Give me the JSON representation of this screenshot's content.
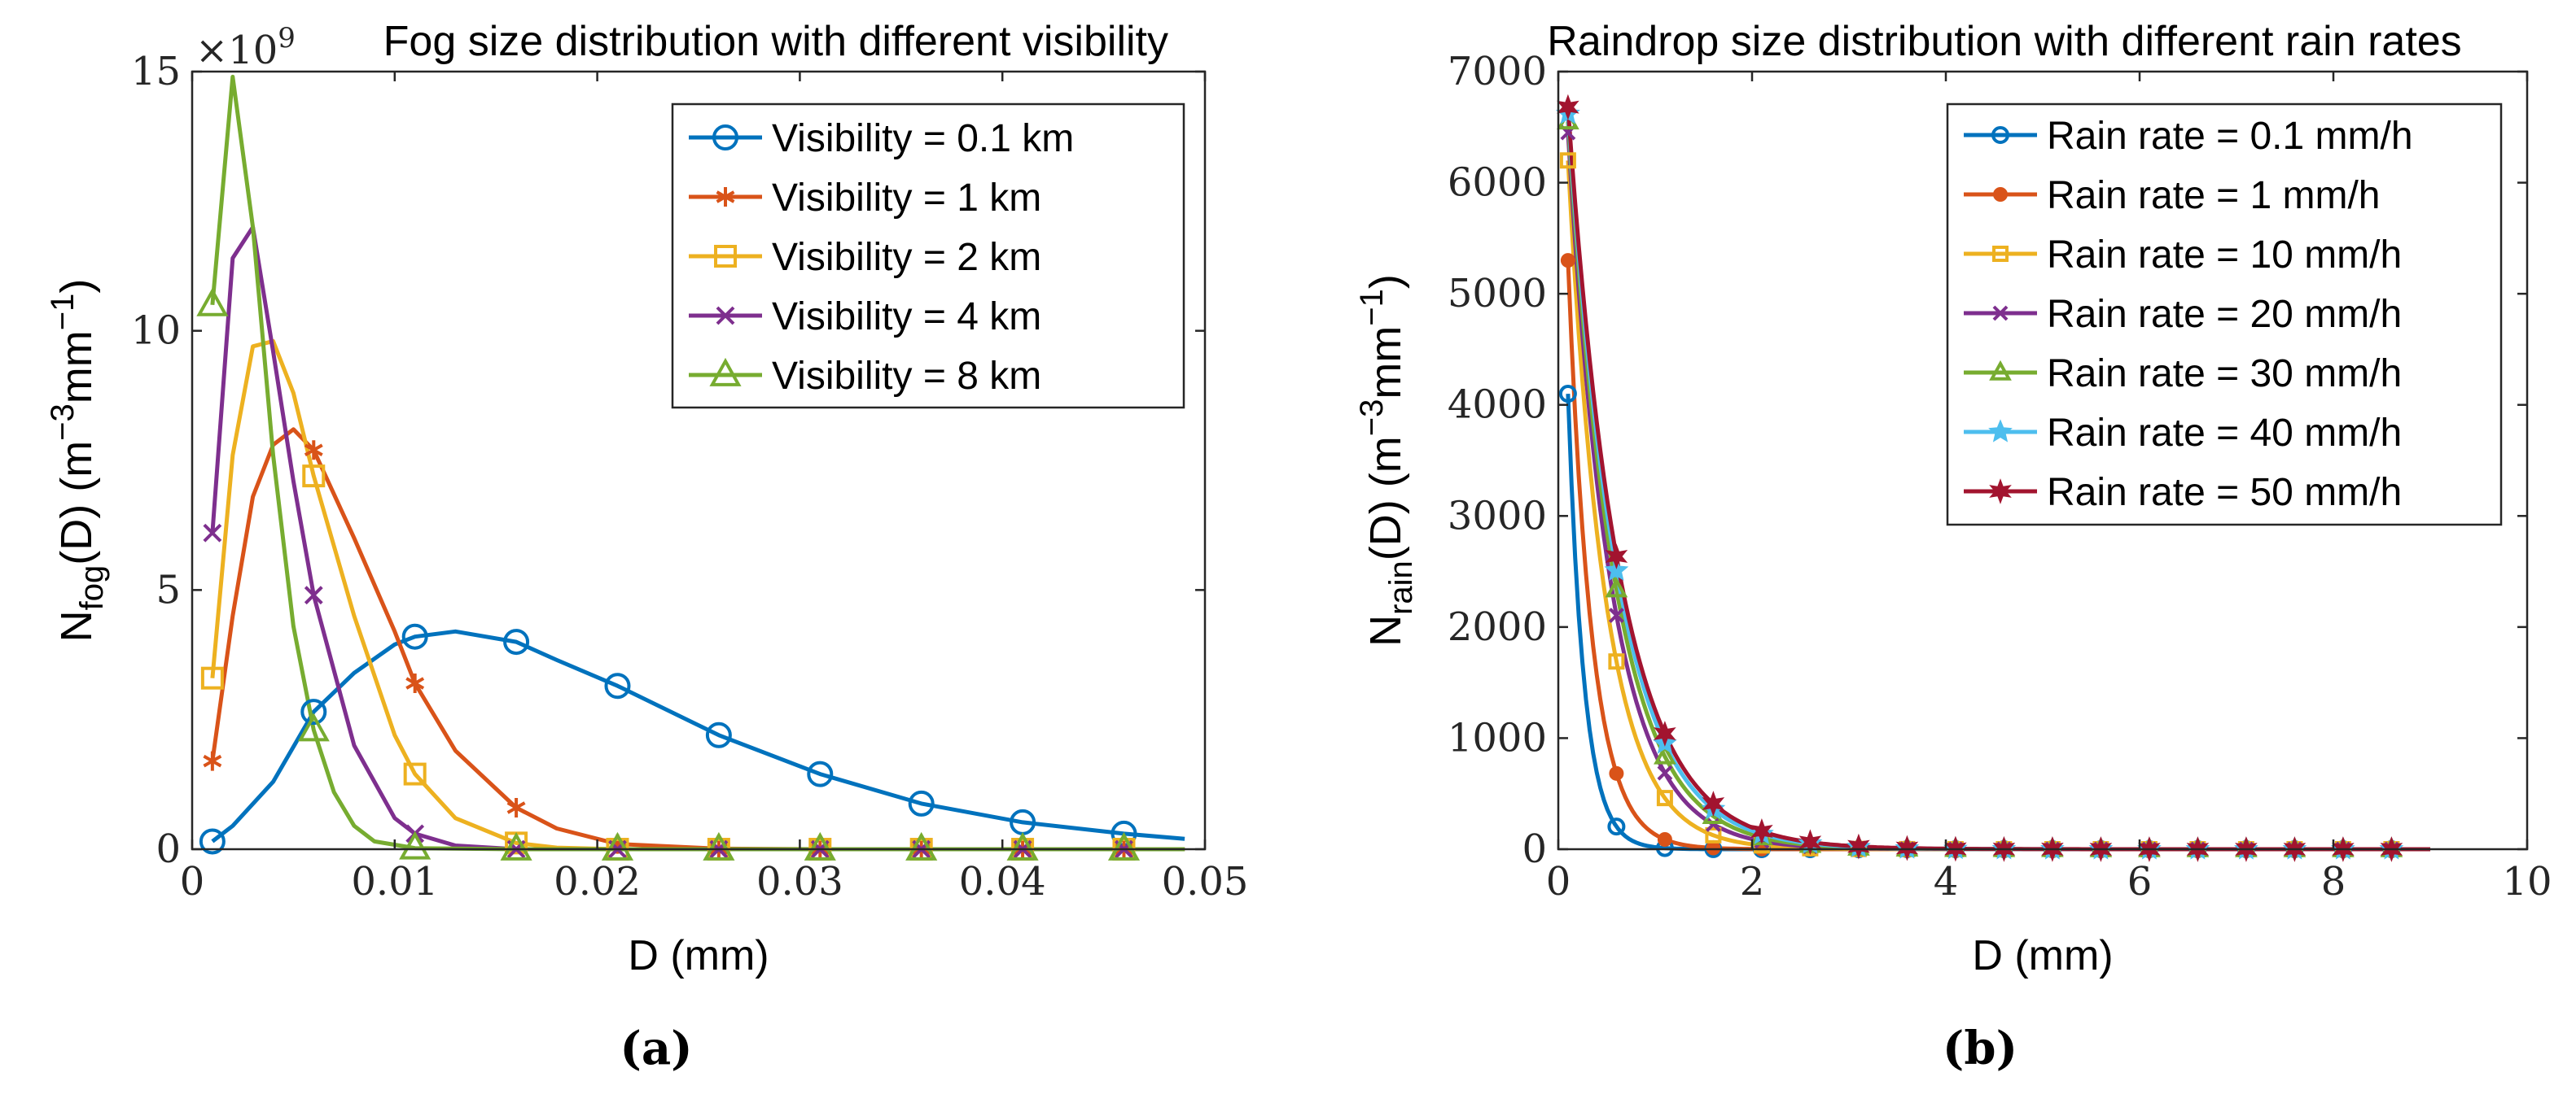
{
  "chart_data": [
    {
      "type": "line",
      "panel_label": "(a)",
      "title": "Fog size distribution with different visibility",
      "y_multiplier": "×10",
      "y_multiplier_exp": "9",
      "xlabel": "D (mm)",
      "ylabel": "N",
      "ylabel_sub": "fog",
      "ylabel_rest": "(D) (m",
      "ylabel_sup1": "−3",
      "ylabel_mid": "mm",
      "ylabel_sup2": "−1",
      "ylabel_end": ")",
      "xlim": [
        0,
        0.05
      ],
      "ylim": [
        0,
        15
      ],
      "xticks": [
        0,
        0.01,
        0.02,
        0.03,
        0.04,
        0.05
      ],
      "xtick_labels": [
        "0",
        "0.01",
        "0.02",
        "0.03",
        "0.04",
        "0.05"
      ],
      "yticks": [
        0,
        5,
        10,
        15
      ],
      "ytick_labels": [
        "0",
        "5",
        "10",
        "15"
      ],
      "legend_position": "top-right",
      "grid": false,
      "series": [
        {
          "name": "Visibility = 0.1 km",
          "color": "#0072BD",
          "marker": "circle",
          "line": [
            [
              0.001,
              0.15
            ],
            [
              0.002,
              0.45
            ],
            [
              0.004,
              1.3
            ],
            [
              0.006,
              2.65
            ],
            [
              0.008,
              3.4
            ],
            [
              0.01,
              3.95
            ],
            [
              0.011,
              4.1
            ],
            [
              0.013,
              4.2
            ],
            [
              0.016,
              4.0
            ],
            [
              0.018,
              3.65
            ],
            [
              0.021,
              3.15
            ],
            [
              0.026,
              2.2
            ],
            [
              0.031,
              1.45
            ],
            [
              0.036,
              0.88
            ],
            [
              0.041,
              0.52
            ],
            [
              0.046,
              0.3
            ],
            [
              0.049,
              0.2
            ]
          ],
          "markers": [
            [
              0.001,
              0.15
            ],
            [
              0.006,
              2.65
            ],
            [
              0.011,
              4.1
            ],
            [
              0.016,
              4.0
            ],
            [
              0.021,
              3.15
            ],
            [
              0.026,
              2.2
            ],
            [
              0.031,
              1.45
            ],
            [
              0.036,
              0.88
            ],
            [
              0.041,
              0.52
            ],
            [
              0.046,
              0.3
            ]
          ]
        },
        {
          "name": "Visibility = 1 km",
          "color": "#D95319",
          "marker": "asterisk",
          "line": [
            [
              0.001,
              1.7
            ],
            [
              0.002,
              4.5
            ],
            [
              0.003,
              6.8
            ],
            [
              0.004,
              7.8
            ],
            [
              0.005,
              8.1
            ],
            [
              0.006,
              7.7
            ],
            [
              0.008,
              6.0
            ],
            [
              0.01,
              4.2
            ],
            [
              0.011,
              3.2
            ],
            [
              0.013,
              1.9
            ],
            [
              0.016,
              0.8
            ],
            [
              0.018,
              0.4
            ],
            [
              0.021,
              0.1
            ],
            [
              0.026,
              0.01
            ],
            [
              0.031,
              0.0
            ],
            [
              0.049,
              0.0
            ]
          ],
          "markers": [
            [
              0.001,
              1.7
            ],
            [
              0.006,
              7.7
            ],
            [
              0.011,
              3.2
            ],
            [
              0.016,
              0.8
            ],
            [
              0.021,
              0.1
            ],
            [
              0.026,
              0.01
            ],
            [
              0.031,
              0.0
            ],
            [
              0.036,
              0.0
            ],
            [
              0.041,
              0.0
            ],
            [
              0.046,
              0.0
            ]
          ]
        },
        {
          "name": "Visibility = 2 km",
          "color": "#EDB120",
          "marker": "square",
          "line": [
            [
              0.001,
              3.3
            ],
            [
              0.002,
              7.6
            ],
            [
              0.003,
              9.7
            ],
            [
              0.004,
              9.8
            ],
            [
              0.005,
              8.8
            ],
            [
              0.006,
              7.2
            ],
            [
              0.008,
              4.5
            ],
            [
              0.01,
              2.2
            ],
            [
              0.011,
              1.45
            ],
            [
              0.013,
              0.6
            ],
            [
              0.016,
              0.12
            ],
            [
              0.018,
              0.03
            ],
            [
              0.021,
              0.0
            ],
            [
              0.049,
              0.0
            ]
          ],
          "markers": [
            [
              0.001,
              3.3
            ],
            [
              0.006,
              7.2
            ],
            [
              0.011,
              1.45
            ],
            [
              0.016,
              0.12
            ],
            [
              0.021,
              0.0
            ],
            [
              0.026,
              0.0
            ],
            [
              0.031,
              0.0
            ],
            [
              0.036,
              0.0
            ],
            [
              0.041,
              0.0
            ],
            [
              0.046,
              0.0
            ]
          ]
        },
        {
          "name": "Visibility = 4 km",
          "color": "#7E2F8E",
          "marker": "x",
          "line": [
            [
              0.001,
              6.1
            ],
            [
              0.002,
              11.4
            ],
            [
              0.003,
              12.0
            ],
            [
              0.004,
              9.6
            ],
            [
              0.005,
              7.1
            ],
            [
              0.006,
              4.9
            ],
            [
              0.008,
              2.0
            ],
            [
              0.01,
              0.6
            ],
            [
              0.011,
              0.3
            ],
            [
              0.013,
              0.07
            ],
            [
              0.016,
              0.0
            ],
            [
              0.049,
              0.0
            ]
          ],
          "markers": [
            [
              0.001,
              6.1
            ],
            [
              0.006,
              4.9
            ],
            [
              0.011,
              0.3
            ],
            [
              0.016,
              0.0
            ],
            [
              0.021,
              0.0
            ],
            [
              0.026,
              0.0
            ],
            [
              0.031,
              0.0
            ],
            [
              0.036,
              0.0
            ],
            [
              0.041,
              0.0
            ],
            [
              0.046,
              0.0
            ]
          ]
        },
        {
          "name": "Visibility = 8 km",
          "color": "#77AC30",
          "marker": "triangle",
          "line": [
            [
              0.001,
              10.5
            ],
            [
              0.002,
              14.9
            ],
            [
              0.003,
              12.0
            ],
            [
              0.004,
              7.6
            ],
            [
              0.005,
              4.3
            ],
            [
              0.006,
              2.3
            ],
            [
              0.007,
              1.1
            ],
            [
              0.008,
              0.45
            ],
            [
              0.009,
              0.15
            ],
            [
              0.011,
              0.02
            ],
            [
              0.016,
              0.0
            ],
            [
              0.049,
              0.0
            ]
          ],
          "markers": [
            [
              0.001,
              10.5
            ],
            [
              0.006,
              2.3
            ],
            [
              0.011,
              0.02
            ],
            [
              0.016,
              0.0
            ],
            [
              0.021,
              0.0
            ],
            [
              0.026,
              0.0
            ],
            [
              0.031,
              0.0
            ],
            [
              0.036,
              0.0
            ],
            [
              0.041,
              0.0
            ],
            [
              0.046,
              0.0
            ]
          ]
        }
      ]
    },
    {
      "type": "line",
      "panel_label": "(b)",
      "title": "Raindrop size distribution with different rain rates",
      "xlabel": "D (mm)",
      "ylabel": "N",
      "ylabel_sub": "rain",
      "ylabel_rest": "(D) (m",
      "ylabel_sup1": "−3",
      "ylabel_mid": "mm",
      "ylabel_sup2": "−1",
      "ylabel_end": ")",
      "xlim": [
        0,
        10
      ],
      "ylim": [
        0,
        7000
      ],
      "xticks": [
        0,
        2,
        4,
        6,
        8,
        10
      ],
      "xtick_labels": [
        "0",
        "2",
        "4",
        "6",
        "8",
        "10"
      ],
      "yticks": [
        0,
        1000,
        2000,
        3000,
        4000,
        5000,
        6000,
        7000
      ],
      "ytick_labels": [
        "0",
        "1000",
        "2000",
        "3000",
        "4000",
        "5000",
        "6000",
        "7000"
      ],
      "legend_position": "top-right",
      "grid": false,
      "series": [
        {
          "name": "Rain rate = 0.1 mm/h",
          "color": "#0072BD",
          "marker": "circle-small",
          "n0": 4100,
          "lambda": 6.0
        },
        {
          "name": "Rain rate = 1 mm/h",
          "color": "#D95319",
          "marker": "dot",
          "n0": 5300,
          "lambda": 4.1
        },
        {
          "name": "Rain rate = 10 mm/h",
          "color": "#EDB120",
          "marker": "square-small",
          "n0": 6200,
          "lambda": 2.6
        },
        {
          "name": "Rain rate = 20 mm/h",
          "color": "#7E2F8E",
          "marker": "x-small",
          "n0": 6450,
          "lambda": 2.24
        },
        {
          "name": "Rain rate = 30 mm/h",
          "color": "#77AC30",
          "marker": "triangle-small",
          "n0": 6550,
          "lambda": 2.06
        },
        {
          "name": "Rain rate = 40 mm/h",
          "color": "#4DBEEE",
          "marker": "star",
          "n0": 6620,
          "lambda": 1.94
        },
        {
          "name": "Rain rate = 50 mm/h",
          "color": "#A2142F",
          "marker": "hexagram",
          "n0": 6680,
          "lambda": 1.86
        }
      ],
      "x_samples": [
        0.1,
        0.6,
        1.1,
        1.6,
        2.1,
        2.6,
        3.1,
        3.6,
        4.1,
        4.6,
        5.1,
        5.6,
        6.1,
        6.6,
        7.1,
        7.6,
        8.1,
        8.6
      ],
      "x_end": 9.0
    }
  ]
}
